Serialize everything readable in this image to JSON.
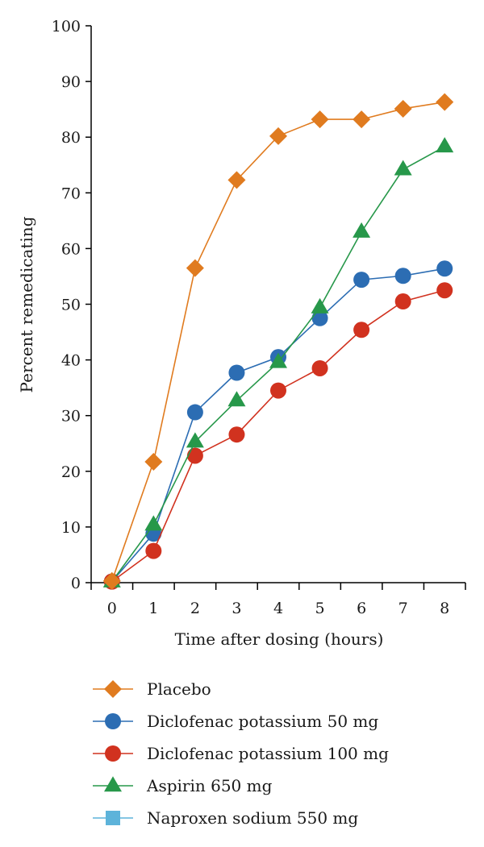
{
  "chart_data": {
    "type": "line",
    "title": "",
    "xlabel": "Time after dosing (hours)",
    "ylabel": "Percent remedicating",
    "xlim": [
      -0.5,
      8.5
    ],
    "ylim": [
      0,
      100
    ],
    "x_ticks": [
      "0",
      "1",
      "2",
      "3",
      "4",
      "5",
      "6",
      "7",
      "8"
    ],
    "y_ticks": [
      "0",
      "10",
      "20",
      "30",
      "40",
      "50",
      "60",
      "70",
      "80",
      "90",
      "100"
    ],
    "grid": false,
    "legend_position": "bottom",
    "series": [
      {
        "name": "Placebo",
        "color": "#e07b1f",
        "marker": "diamond",
        "x": [
          0,
          1,
          2,
          3,
          4,
          5,
          6,
          7,
          8
        ],
        "y": [
          0.3,
          21.7,
          56.5,
          72.3,
          80.2,
          83.2,
          83.2,
          85.1,
          86.3
        ]
      },
      {
        "name": "Diclofenac potassium 50 mg",
        "color": "#2c6db3",
        "marker": "circle",
        "x": [
          0,
          1,
          2,
          3,
          4,
          5,
          6,
          7,
          8
        ],
        "y": [
          0.2,
          8.8,
          30.6,
          37.7,
          40.5,
          47.5,
          54.4,
          55.1,
          56.4
        ]
      },
      {
        "name": "Diclofenac potassium 100 mg",
        "color": "#d1321f",
        "marker": "circle",
        "x": [
          0,
          1,
          2,
          3,
          4,
          5,
          6,
          7,
          8
        ],
        "y": [
          0.2,
          5.7,
          22.8,
          26.6,
          34.5,
          38.5,
          45.4,
          50.5,
          52.5
        ]
      },
      {
        "name": "Aspirin 650 mg",
        "color": "#27984a",
        "marker": "triangle",
        "x": [
          0,
          1,
          2,
          3,
          4,
          5,
          6,
          7,
          8
        ],
        "y": [
          0.2,
          10.4,
          25.3,
          32.7,
          39.6,
          49.4,
          63.0,
          74.2,
          78.3
        ]
      },
      {
        "name": "Naproxen sodium 550 mg",
        "color": "#5db3da",
        "marker": "square",
        "x": [],
        "y": []
      }
    ]
  }
}
